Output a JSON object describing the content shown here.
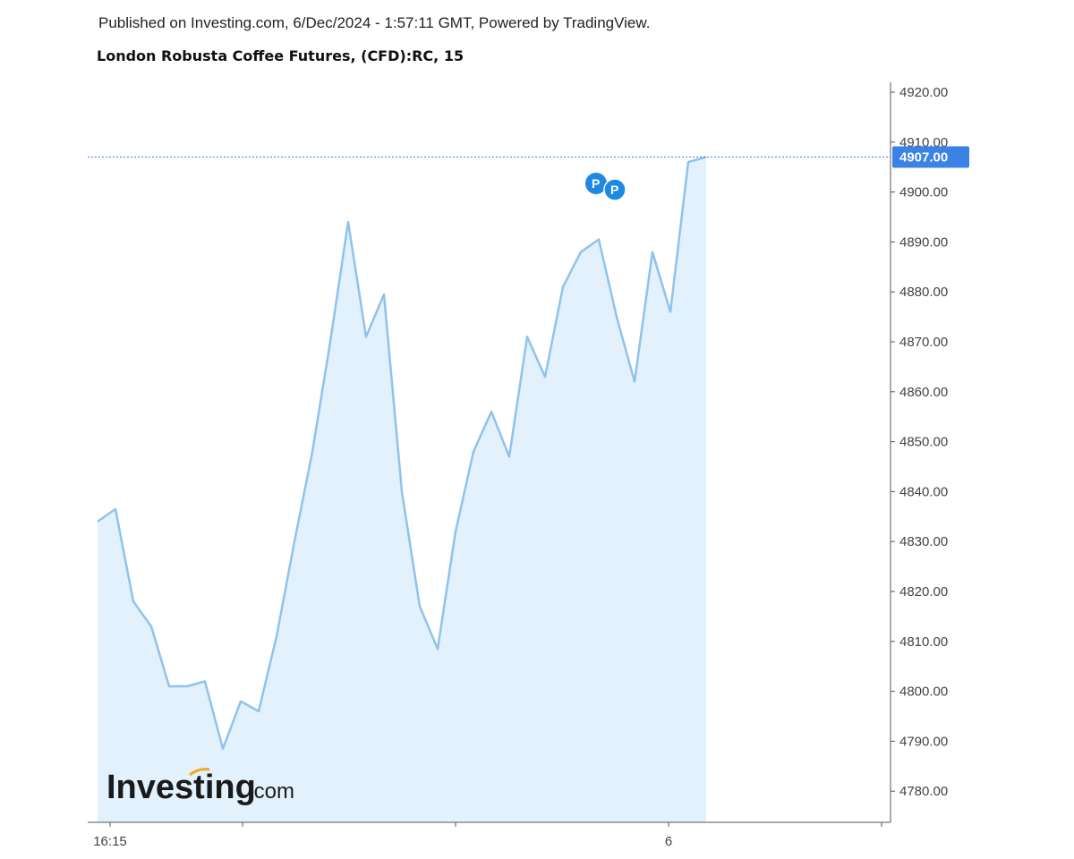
{
  "header": {
    "published": "Published on Investing.com, 6/Dec/2024 - 1:57:11 GMT, Powered by TradingView.",
    "title": "London Robusta Coffee Futures, (CFD):RC, 15"
  },
  "brand": {
    "logo_main": "Investing",
    "logo_sub": ".com"
  },
  "markers": [
    {
      "label": "P"
    },
    {
      "label": "P"
    }
  ],
  "colors": {
    "line": "#90c2ee",
    "fill": "#e2f1fb",
    "last_price": "#3b82e6",
    "marker": "#1e88e5",
    "axis": "#555555"
  },
  "chart_data": {
    "type": "area",
    "ylim": [
      4772.5,
      4920
    ],
    "y_ticks": [
      4920,
      4910,
      4900,
      4890,
      4880,
      4870,
      4860,
      4850,
      4840,
      4830,
      4820,
      4810,
      4800,
      4790,
      4780
    ],
    "y_tick_labels": [
      "4920.00",
      "4910.00",
      "4900.00",
      "4890.00",
      "4880.00",
      "4870.00",
      "4860.00",
      "4850.00",
      "4840.00",
      "4830.00",
      "4820.00",
      "4810.00",
      "4800.00",
      "4790.00",
      "4780.00"
    ],
    "x_ticks": [
      {
        "label": "16:15",
        "index": 0.7
      },
      {
        "label": "",
        "index": 8.1
      },
      {
        "label": "",
        "index": 20
      },
      {
        "label": "6",
        "index": 31.9
      },
      {
        "label": "",
        "index": 43.8
      }
    ],
    "x_max_index": 44.4,
    "values": [
      4834,
      4836.5,
      4818,
      4813,
      4801,
      4801,
      4802,
      4788.5,
      4798,
      4796,
      4811,
      4830,
      4848,
      4870,
      4894,
      4871,
      4879.5,
      4840,
      4817,
      4808.5,
      4832,
      4848,
      4856,
      4847,
      4871,
      4863,
      4881,
      4888,
      4890.5,
      4875,
      4862,
      4888,
      4876,
      4906,
      4907
    ],
    "last_price": 4907,
    "last_price_label": "4907.00",
    "grid": false,
    "legend": "none"
  }
}
